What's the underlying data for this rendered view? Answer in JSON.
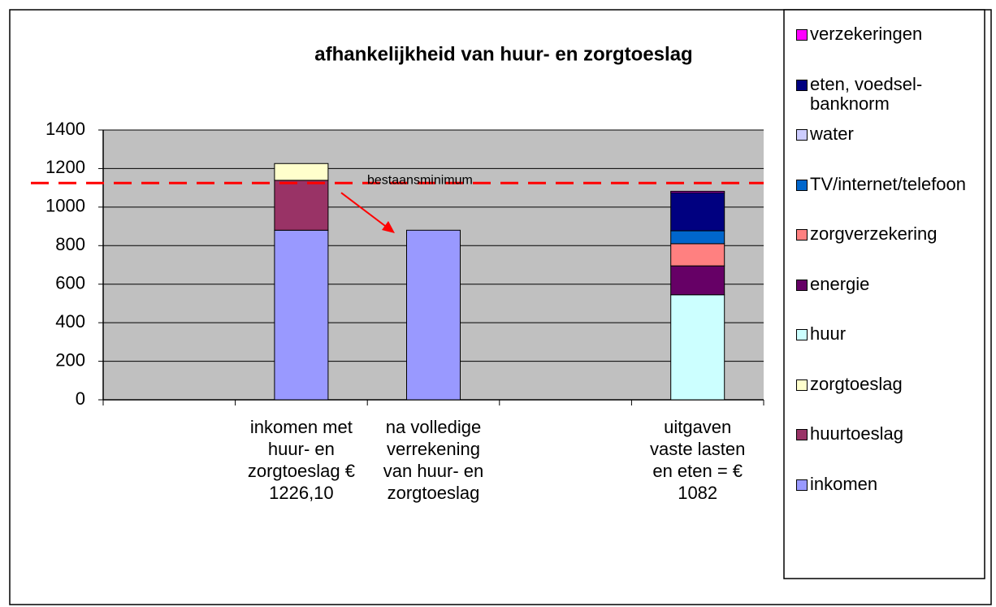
{
  "chart_data": {
    "type": "stacked_bar",
    "title": "afhankelijkheid van huur- en zorgtoeslag",
    "categories": [
      null,
      "inkomen met huur- en zorgtoeslag € 1226,10",
      "na volledige verrekening van huur- en zorgtoeslag",
      null,
      "uitgaven vaste lasten en eten = € 1082"
    ],
    "series": [
      {
        "name": "inkomen",
        "color": "#9999ff",
        "values": [
          null,
          880,
          880,
          null,
          null
        ]
      },
      {
        "name": "huurtoeslag",
        "color": "#993366",
        "values": [
          null,
          259,
          null,
          null,
          null
        ]
      },
      {
        "name": "zorgtoeslag",
        "color": "#ffffcc",
        "values": [
          null,
          87,
          null,
          null,
          null
        ]
      },
      {
        "name": "huur",
        "color": "#ccffff",
        "values": [
          null,
          null,
          null,
          null,
          545
        ]
      },
      {
        "name": "energie",
        "color": "#660066",
        "values": [
          null,
          null,
          null,
          null,
          150
        ]
      },
      {
        "name": "zorgverzekering",
        "color": "#ff8080",
        "values": [
          null,
          null,
          null,
          null,
          115
        ]
      },
      {
        "name": "TV/internet/telefoon",
        "color": "#0066cc",
        "values": [
          null,
          null,
          null,
          null,
          67
        ]
      },
      {
        "name": "water",
        "color": "#ccccff",
        "values": [
          null,
          null,
          null,
          null,
          0
        ]
      },
      {
        "name": "eten, voedsel-banknorm",
        "color": "#000080",
        "values": [
          null,
          null,
          null,
          null,
          198
        ]
      },
      {
        "name": "verzekeringen",
        "color": "#ff00ff",
        "values": [
          null,
          null,
          null,
          null,
          7
        ]
      }
    ],
    "ylim": [
      0,
      1400
    ],
    "yticks": [
      0,
      200,
      400,
      600,
      800,
      1000,
      1200,
      1400
    ],
    "grid": true,
    "reference_line": {
      "value": 1125,
      "label": "bestaansminimum",
      "color": "#ff0000"
    }
  }
}
